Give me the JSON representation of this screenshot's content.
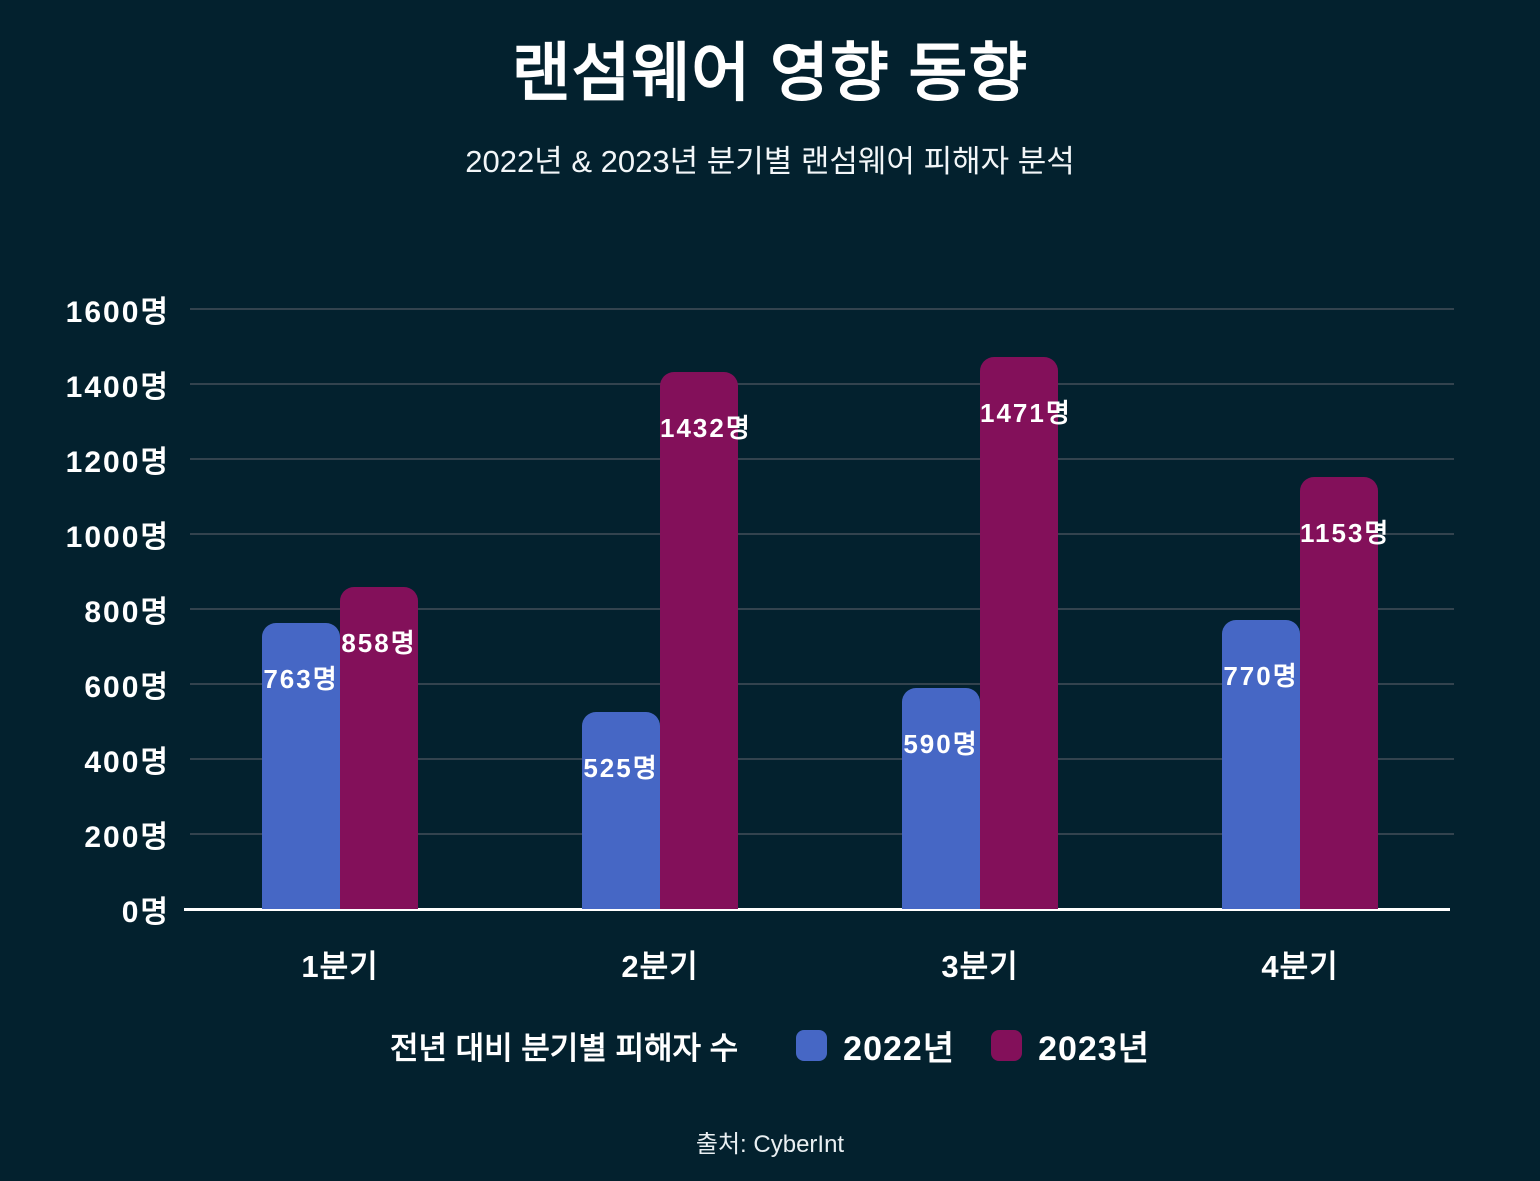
{
  "header": {
    "title": "랜섬웨어 영향 동향",
    "subtitle": "2022년 & 2023년 분기별 랜섬웨어 피해자 분석"
  },
  "chart_data": {
    "type": "bar",
    "categories": [
      "1분기",
      "2분기",
      "3분기",
      "4분기"
    ],
    "series": [
      {
        "name": "2022년",
        "color": "#4667c5",
        "values": [
          763,
          525,
          590,
          770
        ]
      },
      {
        "name": "2023년",
        "color": "#83105a",
        "values": [
          858,
          1432,
          1471,
          1153
        ]
      }
    ],
    "value_suffix": "명",
    "data_label_format": "value+명 (inside bar, near top)",
    "ylim": [
      0,
      1600
    ],
    "y_tick_step": 200,
    "y_tick_labels": [
      "0명",
      "200명",
      "400명",
      "600명",
      "800명",
      "1000명",
      "1200명",
      "1400명",
      "1600명"
    ],
    "x_tick_labels": [
      "1분기",
      "2분기",
      "3분기",
      "4분기"
    ],
    "grid": "horizontal",
    "legend_position": "bottom"
  },
  "legend": {
    "title": "전년 대비 분기별 피해자 수",
    "items": [
      {
        "label": "2022년",
        "color": "#4667c5"
      },
      {
        "label": "2023년",
        "color": "#83105a"
      }
    ]
  },
  "footer": {
    "source": "출처: CyberInt"
  },
  "colors": {
    "background": "#03212e",
    "gridline": "#33434e",
    "axis_line": "#ffffff",
    "text": "#ffffff",
    "series_2022": "#4667c5",
    "series_2023": "#83105a"
  }
}
